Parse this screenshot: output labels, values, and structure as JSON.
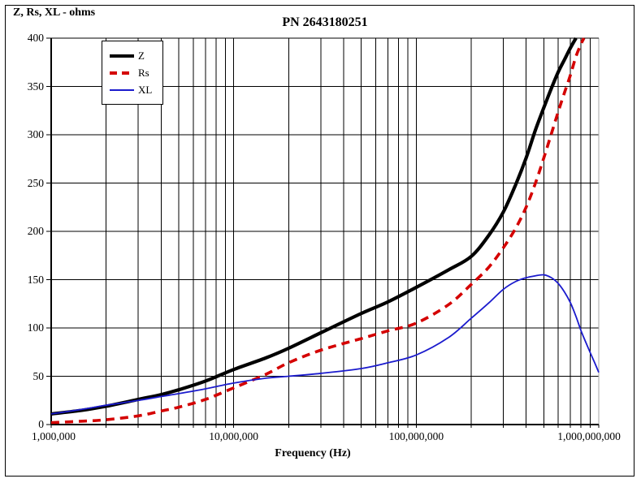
{
  "chart_data": {
    "type": "line",
    "title": "PN 2643180251",
    "corner_axis_title": "Z, Rs, XL - ohms",
    "xlabel": "Frequency (Hz)",
    "x_scale": "log",
    "xlim": [
      1000000,
      1000000000
    ],
    "ylim": [
      0,
      400
    ],
    "grid": "on",
    "legend_position": "top-left-inside",
    "x_ticks": [
      {
        "value": 1000000,
        "label": "1,000,000"
      },
      {
        "value": 10000000,
        "label": "10,000,000"
      },
      {
        "value": 100000000,
        "label": "100,000,000"
      },
      {
        "value": 1000000000,
        "label": "1,000,000,000"
      }
    ],
    "y_ticks": [
      0,
      50,
      100,
      150,
      200,
      250,
      300,
      350,
      400
    ],
    "colors": {
      "grid": "#000000",
      "plot_right_border": "#a6a6a6",
      "z": "#000000",
      "rs": "#d40000",
      "xl": "#1b1bcd"
    },
    "series": [
      {
        "name": "Z",
        "color": "#000000",
        "style": "solid",
        "width": 4.2,
        "points": [
          [
            1000000,
            11
          ],
          [
            1500000,
            15
          ],
          [
            2000000,
            19
          ],
          [
            3000000,
            26
          ],
          [
            4000000,
            31
          ],
          [
            5000000,
            36
          ],
          [
            7000000,
            45
          ],
          [
            10000000,
            57
          ],
          [
            15000000,
            69
          ],
          [
            20000000,
            79
          ],
          [
            30000000,
            95
          ],
          [
            50000000,
            115
          ],
          [
            70000000,
            127
          ],
          [
            100000000,
            142
          ],
          [
            150000000,
            160
          ],
          [
            200000000,
            174
          ],
          [
            250000000,
            196
          ],
          [
            300000000,
            220
          ],
          [
            350000000,
            248
          ],
          [
            400000000,
            276
          ],
          [
            450000000,
            305
          ],
          [
            500000000,
            328
          ],
          [
            550000000,
            348
          ],
          [
            600000000,
            365
          ],
          [
            650000000,
            378
          ],
          [
            700000000,
            390
          ],
          [
            750000000,
            400
          ]
        ]
      },
      {
        "name": "Rs",
        "color": "#d40000",
        "style": "dashed",
        "width": 3.6,
        "points": [
          [
            1000000,
            2
          ],
          [
            1500000,
            3.5
          ],
          [
            2000000,
            5
          ],
          [
            3000000,
            9
          ],
          [
            4000000,
            14
          ],
          [
            5000000,
            18
          ],
          [
            7000000,
            26
          ],
          [
            10000000,
            38
          ],
          [
            15000000,
            52
          ],
          [
            20000000,
            64
          ],
          [
            30000000,
            77
          ],
          [
            50000000,
            89
          ],
          [
            70000000,
            97
          ],
          [
            100000000,
            105
          ],
          [
            150000000,
            124
          ],
          [
            200000000,
            145
          ],
          [
            250000000,
            163
          ],
          [
            300000000,
            183
          ],
          [
            350000000,
            203
          ],
          [
            400000000,
            225
          ],
          [
            450000000,
            250
          ],
          [
            500000000,
            276
          ],
          [
            550000000,
            301
          ],
          [
            600000000,
            324
          ],
          [
            650000000,
            344
          ],
          [
            700000000,
            362
          ],
          [
            750000000,
            381
          ],
          [
            800000000,
            394
          ],
          [
            830000000,
            400
          ]
        ]
      },
      {
        "name": "XL",
        "color": "#1b1bcd",
        "style": "solid",
        "width": 1.8,
        "points": [
          [
            1000000,
            11
          ],
          [
            1500000,
            16
          ],
          [
            2000000,
            20
          ],
          [
            3000000,
            25
          ],
          [
            4000000,
            29
          ],
          [
            5000000,
            32
          ],
          [
            7000000,
            37
          ],
          [
            10000000,
            43
          ],
          [
            15000000,
            48
          ],
          [
            20000000,
            50
          ],
          [
            30000000,
            53
          ],
          [
            50000000,
            58
          ],
          [
            70000000,
            64
          ],
          [
            100000000,
            72
          ],
          [
            150000000,
            90
          ],
          [
            200000000,
            110
          ],
          [
            250000000,
            126
          ],
          [
            300000000,
            140
          ],
          [
            350000000,
            148
          ],
          [
            400000000,
            152
          ],
          [
            450000000,
            154
          ],
          [
            500000000,
            155
          ],
          [
            550000000,
            152
          ],
          [
            600000000,
            146
          ],
          [
            650000000,
            137
          ],
          [
            700000000,
            126
          ],
          [
            750000000,
            112
          ],
          [
            800000000,
            97
          ],
          [
            850000000,
            85
          ],
          [
            900000000,
            74
          ],
          [
            950000000,
            64
          ],
          [
            1000000000,
            54
          ]
        ]
      }
    ]
  }
}
